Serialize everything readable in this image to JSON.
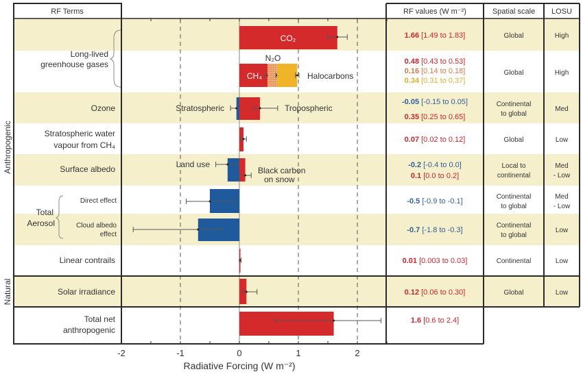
{
  "colors": {
    "band": "#f6efcc",
    "red": "#d42a2c",
    "blue": "#1f5a9c",
    "yellow": "#f0b428",
    "n2o": "#e07a3c",
    "text_red": "#c8282e",
    "text_blue": "#2d5f99",
    "text_orange": "#d9784a",
    "text_yellow": "#dcae2e",
    "frame": "#2a2a2a"
  },
  "headers": {
    "rf_terms": "RF Terms",
    "rf_values": "RF values (W m⁻²)",
    "spatial": "Spatial scale",
    "losu": "LOSU"
  },
  "groups": {
    "anthropogenic": "Anthropogenic",
    "natural": "Natural"
  },
  "terms": {
    "llghg_1": "Long-lived",
    "llghg_2": "greenhouse gases",
    "ozone": "Ozone",
    "water_1": "Stratospheric water",
    "water_2": "vapour from CH₄",
    "albedo": "Surface albedo",
    "aerosol_1": "Total",
    "aerosol_2": "Aerosol",
    "direct": "Direct effect",
    "cloud_1": "Cloud albedo",
    "cloud_2": "effect",
    "contrails": "Linear contrails",
    "solar": "Solar irradiance",
    "total_1": "Total net",
    "total_2": "anthropogenic"
  },
  "annotations": {
    "co2": "CO₂",
    "n2o": "N₂O",
    "ch4": "CH₄",
    "halocarbons": "Halocarbons",
    "stratospheric": "Stratospheric",
    "tropospheric": "Tropospheric",
    "land_use": "Land use",
    "bc_1": "Black carbon",
    "bc_2": "on snow"
  },
  "rf_values": [
    {
      "value": "1.66",
      "range": "[1.49 to 1.83]",
      "tone": "red"
    },
    {
      "value": "0.48",
      "range": "[0.43 to 0.53]",
      "tone": "red"
    },
    {
      "value": "0.16",
      "range": "[0.14 to 0.18]",
      "tone": "orange"
    },
    {
      "value": "0.34",
      "range": "[0.31 to 0.37]",
      "tone": "yellow"
    },
    {
      "value": "-0.05",
      "range": "[-0.15 to 0.05]",
      "tone": "blue"
    },
    {
      "value": "0.35",
      "range": "[0.25 to 0.65]",
      "tone": "red"
    },
    {
      "value": "0.07",
      "range": "[0.02 to 0.12]",
      "tone": "red"
    },
    {
      "value": "-0.2",
      "range": "[-0.4 to 0.0]",
      "tone": "blue"
    },
    {
      "value": "0.1",
      "range": "[0.0 to 0.2]",
      "tone": "red"
    },
    {
      "value": "-0.5",
      "range": "[-0.9 to -0.1]",
      "tone": "blue"
    },
    {
      "value": "-0.7",
      "range": "[-1.8 to -0.3]",
      "tone": "blue"
    },
    {
      "value": "0.01",
      "range": "[0.003 to 0.03]",
      "tone": "red"
    },
    {
      "value": "0.12",
      "range": "[0.06 to 0.30]",
      "tone": "red"
    },
    {
      "value": "1.6",
      "range": "[0.6 to 2.4]",
      "tone": "red"
    }
  ],
  "spatial": [
    [
      "Global"
    ],
    [
      "Global"
    ],
    [
      "Continental",
      "to global"
    ],
    [
      "Global"
    ],
    [
      "Local to",
      "continental"
    ],
    [
      "Continental",
      "to global"
    ],
    [
      "Continental",
      "to global"
    ],
    [
      "Continental"
    ],
    [
      "Global"
    ]
  ],
  "losu": [
    [
      "High"
    ],
    [
      "High"
    ],
    [
      "Med"
    ],
    [
      "Low"
    ],
    [
      "Med",
      "- Low"
    ],
    [
      "Med",
      "- Low"
    ],
    [
      "Low"
    ],
    [
      "Low"
    ],
    [
      "Low"
    ]
  ],
  "chart_data": {
    "type": "bar",
    "orientation": "horizontal",
    "xlabel": "Radiative Forcing (W m⁻²)",
    "xlim": [
      -2,
      2.5
    ],
    "xticks": [
      "-2",
      "-1",
      "0",
      "1",
      "2"
    ],
    "grid": "dashed vertical at -1, 1, 2",
    "bars": [
      {
        "name": "CO2",
        "value": 1.66,
        "low": 1.49,
        "high": 1.83,
        "start": 0,
        "color": "red"
      },
      {
        "name": "CH4",
        "value": 0.48,
        "low": 0.43,
        "high": 0.53,
        "start": 0,
        "color": "red"
      },
      {
        "name": "N2O",
        "value": 0.16,
        "low": 0.14,
        "high": 0.18,
        "start": 0.48,
        "color": "n2o"
      },
      {
        "name": "Halocarbons",
        "value": 0.34,
        "low": 0.31,
        "high": 0.37,
        "start": 0.64,
        "color": "yellow"
      },
      {
        "name": "Stratospheric ozone",
        "value": -0.05,
        "low": -0.15,
        "high": 0.05,
        "start": 0,
        "color": "blue"
      },
      {
        "name": "Tropospheric ozone",
        "value": 0.35,
        "low": 0.25,
        "high": 0.65,
        "start": 0,
        "color": "red"
      },
      {
        "name": "Stratospheric water vapour",
        "value": 0.07,
        "low": 0.02,
        "high": 0.12,
        "start": 0,
        "color": "red"
      },
      {
        "name": "Land use",
        "value": -0.2,
        "low": -0.4,
        "high": 0.0,
        "start": 0,
        "color": "blue"
      },
      {
        "name": "Black carbon on snow",
        "value": 0.1,
        "low": 0.0,
        "high": 0.2,
        "start": 0,
        "color": "red"
      },
      {
        "name": "Aerosol direct effect",
        "value": -0.5,
        "low": -0.9,
        "high": -0.1,
        "start": 0,
        "color": "blue"
      },
      {
        "name": "Cloud albedo effect",
        "value": -0.7,
        "low": -1.8,
        "high": -0.3,
        "start": 0,
        "color": "blue"
      },
      {
        "name": "Linear contrails",
        "value": 0.01,
        "low": 0.003,
        "high": 0.03,
        "start": 0,
        "color": "red"
      },
      {
        "name": "Solar irradiance",
        "value": 0.12,
        "low": 0.06,
        "high": 0.3,
        "start": 0,
        "color": "red"
      },
      {
        "name": "Total net anthropogenic",
        "value": 1.6,
        "low": 0.6,
        "high": 2.4,
        "start": 0,
        "color": "red"
      }
    ]
  }
}
